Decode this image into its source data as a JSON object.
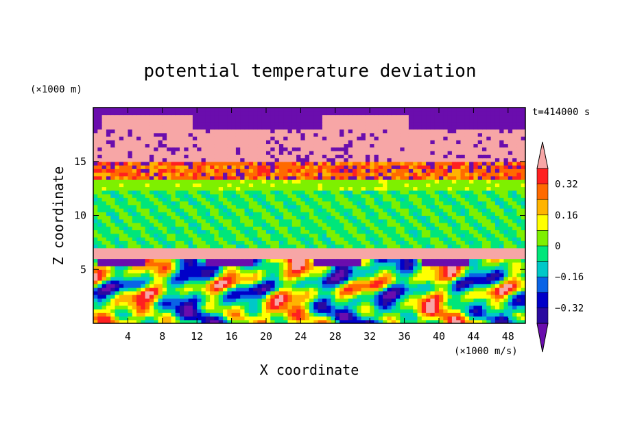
{
  "chart_data": {
    "type": "heatmap",
    "title": "potential temperature deviation",
    "time_label": "t=414000 s",
    "xlabel": "X coordinate",
    "ylabel": "Z coordinate",
    "x_unit": "(×1000 m/s)",
    "y_unit": "(×1000 m)",
    "xlim": [
      0,
      50
    ],
    "ylim": [
      0,
      20
    ],
    "x_ticks": [
      4,
      8,
      12,
      16,
      20,
      24,
      28,
      32,
      36,
      40,
      44,
      48
    ],
    "y_ticks": [
      5,
      10,
      15
    ],
    "colorbar": {
      "levels": [
        -0.4,
        -0.32,
        -0.24,
        -0.16,
        -0.08,
        0,
        0.08,
        0.16,
        0.24,
        0.32,
        0.4
      ],
      "colors": [
        "#6a0dad",
        "#2a0aa0",
        "#0000c8",
        "#0a64e6",
        "#00c8c8",
        "#00e67a",
        "#7ef000",
        "#ffff00",
        "#ffb400",
        "#ff6a00",
        "#ff2020",
        "#f7a6a6"
      ],
      "tick_labels": [
        "0.32",
        "0.16",
        "0",
        "−0.16",
        "−0.32"
      ],
      "extend": "both"
    },
    "layers": [
      {
        "z": [
          0,
          6
        ],
        "pattern": "turbulent mixed, values -0.4 to 0.4"
      },
      {
        "z": [
          6,
          7
        ],
        "value": 0.45
      },
      {
        "z": [
          7,
          12.5
        ],
        "value": -0.02
      },
      {
        "z": [
          12.5,
          13.5
        ],
        "value": 0.05
      },
      {
        "z": [
          13.5,
          15
        ],
        "value": 0.3
      },
      {
        "z": [
          15,
          18
        ],
        "value": 0.45
      },
      {
        "z": [
          18,
          20
        ],
        "value": -0.45
      }
    ]
  }
}
